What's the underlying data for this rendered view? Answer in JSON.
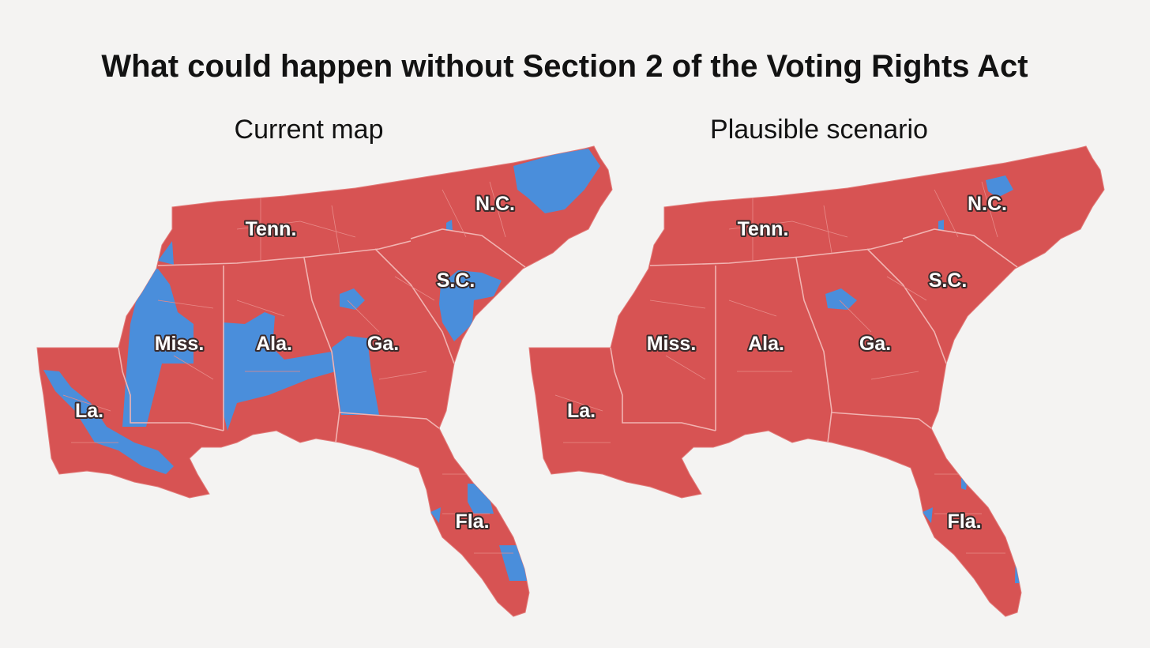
{
  "title": "What could happen without Section 2 of the Voting Rights Act",
  "maps": [
    {
      "heading": "Current map",
      "labels": [
        "Tenn.",
        "N.C.",
        "S.C.",
        "Miss.",
        "Ala.",
        "Ga.",
        "La.",
        "Fla."
      ]
    },
    {
      "heading": "Plausible scenario",
      "labels": [
        "Tenn.",
        "N.C.",
        "S.C.",
        "Miss.",
        "Ala.",
        "Ga.",
        "La.",
        "Fla."
      ]
    }
  ]
}
